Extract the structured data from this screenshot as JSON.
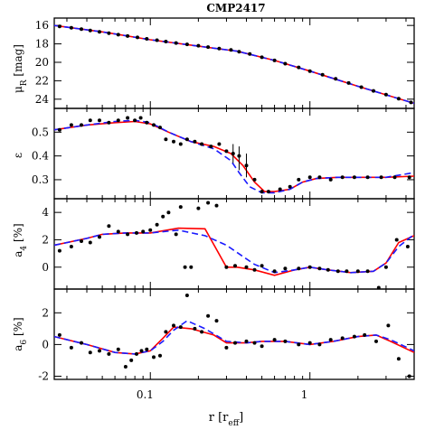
{
  "figure": {
    "title": "CMP2417",
    "x_label": "r [r_eff]",
    "x_label_main": "r [r",
    "x_label_sub": "eff",
    "x_label_close": "]",
    "x_tick_labels": [
      "0.1",
      "1"
    ]
  },
  "colors": {
    "solid_model": "#ff0000",
    "dashed_model": "#1a1aff",
    "points": "#000000"
  },
  "chart_data": [
    {
      "type": "scatter",
      "panel": "mu",
      "ylabel": "μ_R [mag]",
      "ylabel_main": "μ",
      "ylabel_sub": "R",
      "ylabel_rest": " [mag]",
      "xscale": "log",
      "xlim": [
        0.025,
        4.5
      ],
      "ylim": [
        25.0,
        15.2
      ],
      "y_inverted": true,
      "y_ticks": [
        16,
        18,
        20,
        22,
        24
      ],
      "points": [
        [
          0.027,
          16.1
        ],
        [
          0.032,
          16.25
        ],
        [
          0.037,
          16.4
        ],
        [
          0.042,
          16.55
        ],
        [
          0.048,
          16.7
        ],
        [
          0.055,
          16.85
        ],
        [
          0.063,
          17.0
        ],
        [
          0.072,
          17.15
        ],
        [
          0.083,
          17.3
        ],
        [
          0.095,
          17.45
        ],
        [
          0.11,
          17.6
        ],
        [
          0.125,
          17.75
        ],
        [
          0.145,
          17.9
        ],
        [
          0.17,
          18.05
        ],
        [
          0.2,
          18.2
        ],
        [
          0.23,
          18.35
        ],
        [
          0.27,
          18.5
        ],
        [
          0.32,
          18.65
        ],
        [
          0.36,
          18.85
        ],
        [
          0.42,
          19.1
        ],
        [
          0.5,
          19.45
        ],
        [
          0.6,
          19.8
        ],
        [
          0.7,
          20.15
        ],
        [
          0.85,
          20.55
        ],
        [
          1.0,
          20.95
        ],
        [
          1.2,
          21.35
        ],
        [
          1.45,
          21.8
        ],
        [
          1.75,
          22.25
        ],
        [
          2.1,
          22.7
        ],
        [
          2.5,
          23.1
        ],
        [
          3.0,
          23.5
        ],
        [
          3.6,
          23.95
        ],
        [
          4.3,
          24.35
        ]
      ],
      "series": [
        {
          "name": "",
          "style": "solid",
          "color": "#ff0000",
          "x": [
            0.025,
            0.05,
            0.1,
            0.2,
            0.35,
            0.6,
            1.0,
            2.0,
            4.5
          ],
          "y": [
            16.0,
            16.7,
            17.55,
            18.25,
            18.8,
            19.8,
            20.95,
            22.6,
            24.45
          ]
        },
        {
          "name": "",
          "style": "dashed",
          "color": "#1a1aff",
          "x": [
            0.025,
            0.05,
            0.1,
            0.2,
            0.35,
            0.6,
            1.0,
            2.0,
            4.5
          ],
          "y": [
            16.0,
            16.7,
            17.55,
            18.25,
            18.8,
            19.8,
            20.95,
            22.6,
            24.45
          ]
        }
      ]
    },
    {
      "type": "scatter",
      "panel": "ellipticity",
      "ylabel": "ε",
      "xscale": "log",
      "xlim": [
        0.025,
        4.5
      ],
      "ylim": [
        0.22,
        0.6
      ],
      "y_ticks": [
        0.3,
        0.4,
        0.5
      ],
      "y_tick_labels": [
        "0.3",
        "0.4",
        "0.5"
      ],
      "points": [
        [
          0.027,
          0.51
        ],
        [
          0.032,
          0.53
        ],
        [
          0.037,
          0.53
        ],
        [
          0.042,
          0.55
        ],
        [
          0.048,
          0.55
        ],
        [
          0.055,
          0.54
        ],
        [
          0.063,
          0.55
        ],
        [
          0.072,
          0.56
        ],
        [
          0.08,
          0.55
        ],
        [
          0.087,
          0.56
        ],
        [
          0.095,
          0.54
        ],
        [
          0.105,
          0.53
        ],
        [
          0.115,
          0.52
        ],
        [
          0.125,
          0.47
        ],
        [
          0.14,
          0.46
        ],
        [
          0.155,
          0.45
        ],
        [
          0.17,
          0.47
        ],
        [
          0.19,
          0.46
        ],
        [
          0.21,
          0.45
        ],
        [
          0.24,
          0.44
        ],
        [
          0.27,
          0.45
        ],
        [
          0.3,
          0.42
        ],
        [
          0.33,
          0.41
        ],
        [
          0.36,
          0.4
        ],
        [
          0.4,
          0.36
        ],
        [
          0.45,
          0.3
        ],
        [
          0.5,
          0.25
        ],
        [
          0.55,
          0.25
        ],
        [
          0.65,
          0.26
        ],
        [
          0.75,
          0.27
        ],
        [
          0.85,
          0.3
        ],
        [
          1.0,
          0.31
        ],
        [
          1.15,
          0.31
        ],
        [
          1.35,
          0.3
        ],
        [
          1.6,
          0.31
        ],
        [
          1.9,
          0.31
        ],
        [
          2.3,
          0.31
        ],
        [
          2.8,
          0.31
        ],
        [
          3.4,
          0.31
        ],
        [
          4.2,
          0.31
        ]
      ],
      "errorbars": [
        [
          0.33,
          0.41,
          0.04
        ],
        [
          0.36,
          0.39,
          0.05
        ],
        [
          0.4,
          0.36,
          0.05
        ]
      ],
      "series": [
        {
          "name": "",
          "style": "solid",
          "color": "#ff0000",
          "x": [
            0.025,
            0.04,
            0.06,
            0.08,
            0.1,
            0.13,
            0.18,
            0.25,
            0.32,
            0.38,
            0.45,
            0.52,
            0.6,
            0.75,
            0.9,
            1.1,
            1.5,
            2.0,
            3.0,
            4.5
          ],
          "y": [
            0.51,
            0.53,
            0.54,
            0.545,
            0.535,
            0.5,
            0.46,
            0.44,
            0.41,
            0.36,
            0.29,
            0.25,
            0.25,
            0.26,
            0.29,
            0.305,
            0.31,
            0.31,
            0.31,
            0.315
          ]
        },
        {
          "name": "",
          "style": "dashed",
          "color": "#1a1aff",
          "x": [
            0.025,
            0.04,
            0.06,
            0.08,
            0.1,
            0.13,
            0.18,
            0.25,
            0.32,
            0.36,
            0.42,
            0.5,
            0.6,
            0.75,
            0.9,
            1.1,
            1.5,
            2.0,
            3.0,
            4.5
          ],
          "y": [
            0.51,
            0.53,
            0.545,
            0.55,
            0.54,
            0.5,
            0.46,
            0.43,
            0.38,
            0.33,
            0.27,
            0.245,
            0.245,
            0.26,
            0.29,
            0.305,
            0.31,
            0.31,
            0.31,
            0.33
          ]
        }
      ]
    },
    {
      "type": "scatter",
      "panel": "a4",
      "ylabel": "a_4 [%]",
      "ylabel_main": "a",
      "ylabel_sub": "4",
      "ylabel_rest": " [%]",
      "xscale": "log",
      "xlim": [
        0.025,
        4.5
      ],
      "ylim": [
        -1.6,
        5.0
      ],
      "y_ticks": [
        0,
        2,
        4
      ],
      "points": [
        [
          0.027,
          1.2
        ],
        [
          0.032,
          1.5
        ],
        [
          0.037,
          1.9
        ],
        [
          0.042,
          1.8
        ],
        [
          0.048,
          2.2
        ],
        [
          0.055,
          3.0
        ],
        [
          0.063,
          2.6
        ],
        [
          0.072,
          2.4
        ],
        [
          0.082,
          2.5
        ],
        [
          0.09,
          2.6
        ],
        [
          0.1,
          2.7
        ],
        [
          0.11,
          3.1
        ],
        [
          0.12,
          3.7
        ],
        [
          0.13,
          4.0
        ],
        [
          0.145,
          2.4
        ],
        [
          0.155,
          4.4
        ],
        [
          0.165,
          0.0
        ],
        [
          0.18,
          0.0
        ],
        [
          0.2,
          4.3
        ],
        [
          0.23,
          4.7
        ],
        [
          0.26,
          4.5
        ],
        [
          0.3,
          0.0
        ],
        [
          0.34,
          0.1
        ],
        [
          0.4,
          0.0
        ],
        [
          0.45,
          -0.2
        ],
        [
          0.5,
          0.1
        ],
        [
          0.6,
          -0.3
        ],
        [
          0.7,
          -0.1
        ],
        [
          0.85,
          -0.1
        ],
        [
          1.0,
          0.0
        ],
        [
          1.15,
          -0.1
        ],
        [
          1.3,
          -0.2
        ],
        [
          1.5,
          -0.3
        ],
        [
          1.7,
          -0.3
        ],
        [
          2.0,
          -0.3
        ],
        [
          2.3,
          -0.3
        ],
        [
          2.7,
          -1.5
        ],
        [
          3.0,
          0.0
        ],
        [
          3.5,
          2.0
        ],
        [
          4.1,
          1.5
        ]
      ],
      "series": [
        {
          "name": "",
          "style": "solid",
          "color": "#ff0000",
          "x": [
            0.025,
            0.04,
            0.05,
            0.07,
            0.1,
            0.15,
            0.22,
            0.3,
            0.35,
            0.45,
            0.6,
            0.8,
            1.0,
            1.3,
            1.8,
            2.5,
            3.0,
            3.6,
            4.5
          ],
          "y": [
            1.6,
            2.1,
            2.4,
            2.5,
            2.5,
            2.85,
            2.8,
            0.0,
            0.0,
            -0.2,
            -0.6,
            -0.2,
            0.0,
            -0.2,
            -0.4,
            -0.3,
            0.3,
            1.8,
            2.3
          ]
        },
        {
          "name": "",
          "style": "dashed",
          "color": "#1a1aff",
          "x": [
            0.025,
            0.04,
            0.05,
            0.07,
            0.1,
            0.15,
            0.22,
            0.3,
            0.45,
            0.6,
            0.8,
            1.0,
            1.3,
            1.8,
            2.5,
            3.0,
            3.6,
            4.5
          ],
          "y": [
            1.6,
            2.1,
            2.4,
            2.5,
            2.5,
            2.7,
            2.3,
            1.6,
            0.2,
            -0.4,
            -0.2,
            0.0,
            -0.2,
            -0.4,
            -0.3,
            0.3,
            1.5,
            2.4
          ]
        }
      ]
    },
    {
      "type": "scatter",
      "panel": "a6",
      "ylabel": "a_6 [%]",
      "ylabel_main": "a",
      "ylabel_sub": "6",
      "ylabel_rest": " [%]",
      "xscale": "log",
      "xlim": [
        0.025,
        4.5
      ],
      "ylim": [
        -2.2,
        3.5
      ],
      "y_ticks": [
        -2,
        0,
        2
      ],
      "points": [
        [
          0.027,
          0.6
        ],
        [
          0.032,
          -0.2
        ],
        [
          0.037,
          0.1
        ],
        [
          0.042,
          -0.5
        ],
        [
          0.048,
          -0.4
        ],
        [
          0.055,
          -0.6
        ],
        [
          0.063,
          -0.3
        ],
        [
          0.07,
          -1.4
        ],
        [
          0.076,
          -1.0
        ],
        [
          0.082,
          -0.6
        ],
        [
          0.088,
          -0.4
        ],
        [
          0.095,
          -0.3
        ],
        [
          0.105,
          -0.8
        ],
        [
          0.115,
          -0.7
        ],
        [
          0.125,
          0.8
        ],
        [
          0.14,
          1.2
        ],
        [
          0.155,
          1.1
        ],
        [
          0.17,
          3.1
        ],
        [
          0.19,
          1.0
        ],
        [
          0.21,
          0.8
        ],
        [
          0.23,
          1.8
        ],
        [
          0.26,
          1.5
        ],
        [
          0.3,
          -0.2
        ],
        [
          0.34,
          0.1
        ],
        [
          0.4,
          0.2
        ],
        [
          0.45,
          0.1
        ],
        [
          0.5,
          -0.1
        ],
        [
          0.6,
          0.3
        ],
        [
          0.7,
          0.2
        ],
        [
          0.85,
          0.0
        ],
        [
          1.0,
          0.1
        ],
        [
          1.15,
          0.0
        ],
        [
          1.35,
          0.3
        ],
        [
          1.6,
          0.4
        ],
        [
          1.9,
          0.5
        ],
        [
          2.2,
          0.6
        ],
        [
          2.6,
          0.2
        ],
        [
          3.1,
          1.2
        ],
        [
          3.6,
          -0.9
        ],
        [
          4.2,
          -2.0
        ]
      ],
      "series": [
        {
          "name": "",
          "style": "solid",
          "color": "#ff0000",
          "x": [
            0.025,
            0.04,
            0.06,
            0.08,
            0.1,
            0.12,
            0.14,
            0.18,
            0.25,
            0.3,
            0.4,
            0.5,
            0.7,
            1.0,
            1.4,
            2.0,
            2.6,
            3.2,
            4.5
          ],
          "y": [
            0.5,
            0.0,
            -0.5,
            -0.6,
            -0.4,
            0.4,
            1.1,
            1.0,
            0.6,
            0.1,
            0.1,
            0.2,
            0.2,
            0.0,
            0.2,
            0.5,
            0.6,
            0.2,
            -0.5
          ]
        },
        {
          "name": "",
          "style": "dashed",
          "color": "#1a1aff",
          "x": [
            0.025,
            0.04,
            0.06,
            0.08,
            0.1,
            0.12,
            0.14,
            0.17,
            0.22,
            0.3,
            0.4,
            0.5,
            0.7,
            1.0,
            1.4,
            2.0,
            2.6,
            3.2,
            4.5
          ],
          "y": [
            0.5,
            0.0,
            -0.5,
            -0.6,
            -0.4,
            0.2,
            0.9,
            1.5,
            1.0,
            0.2,
            0.1,
            0.2,
            0.2,
            0.0,
            0.2,
            0.5,
            0.6,
            0.3,
            -0.4
          ]
        }
      ]
    }
  ]
}
